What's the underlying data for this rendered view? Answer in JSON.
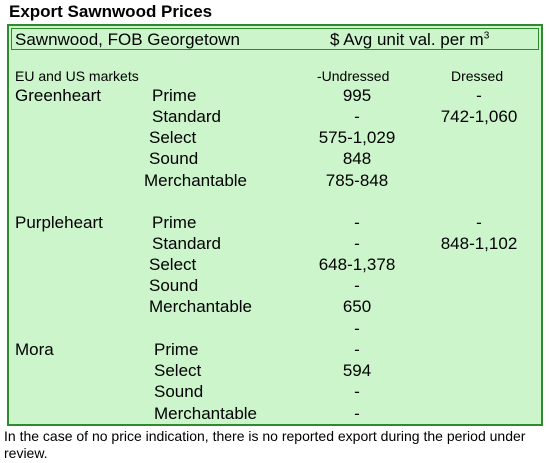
{
  "title": "Export Sawnwood Prices",
  "header": {
    "left": "Sawnwood, FOB Georgetown",
    "right": "$ Avg unit val. per m",
    "sup": "3"
  },
  "subheader": {
    "markets": "EU and US markets",
    "undressed": "-Undressed",
    "dressed": "Dressed"
  },
  "groups": [
    {
      "species": "Greenheart",
      "rows": [
        {
          "grade": "Prime",
          "undressed": "995",
          "dressed": "-"
        },
        {
          "grade": "Standard",
          "undressed": "-",
          "dressed": "742-1,060"
        },
        {
          "grade": "Select",
          "undressed": "575-1,029",
          "dressed": ""
        },
        {
          "grade": "Sound",
          "undressed": "848",
          "dressed": ""
        },
        {
          "grade": "Merchantable",
          "undressed": "785-848",
          "dressed": ""
        }
      ]
    },
    {
      "species": "Purpleheart",
      "rows": [
        {
          "grade": "Prime",
          "undressed": "-",
          "dressed": "-"
        },
        {
          "grade": "Standard",
          "undressed": "-",
          "dressed": "848-1,102"
        },
        {
          "grade": "Select",
          "undressed": "648-1,378",
          "dressed": ""
        },
        {
          "grade": "Sound",
          "undressed": "-",
          "dressed": ""
        },
        {
          "grade": "Merchantable",
          "undressed": "650",
          "dressed": ""
        }
      ],
      "trailing_undressed": "-"
    },
    {
      "species": "Mora",
      "rows": [
        {
          "grade": "Prime",
          "undressed": "-",
          "dressed": ""
        },
        {
          "grade": "Select",
          "undressed": "594",
          "dressed": ""
        },
        {
          "grade": "Sound",
          "undressed": "-",
          "dressed": ""
        },
        {
          "grade": "Merchantable",
          "undressed": "-",
          "dressed": ""
        }
      ]
    }
  ],
  "footnote": "In the case of no price indication, there is no reported export during the period under review."
}
